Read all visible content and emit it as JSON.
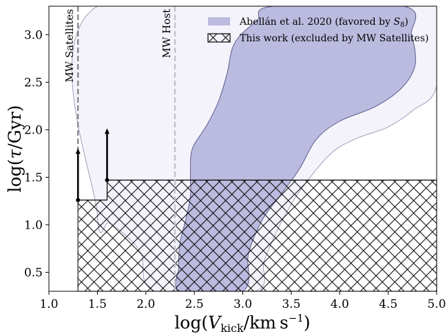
{
  "chart_data": {
    "type": "area",
    "title": "",
    "xlabel": "log(V_kick/km s^-1)",
    "ylabel": "log(τ/Gyr)",
    "xlim": [
      1.0,
      5.0
    ],
    "ylim": [
      0.3,
      3.3
    ],
    "x_ticks": [
      "1.0",
      "1.5",
      "2.0",
      "2.5",
      "3.0",
      "3.5",
      "4.0",
      "4.5",
      "5.0"
    ],
    "y_ticks": [
      "0.5",
      "1.0",
      "1.5",
      "2.0",
      "2.5",
      "3.0"
    ],
    "x_tick_values": [
      1.0,
      1.5,
      2.0,
      2.5,
      3.0,
      3.5,
      4.0,
      4.5,
      5.0
    ],
    "y_tick_values": [
      0.5,
      1.0,
      1.5,
      2.0,
      2.5,
      3.0
    ],
    "grid": false,
    "legend_position": "top-right",
    "colors": {
      "favored_fill": "#bbbbdf",
      "favored_edge": "#5a5a8a",
      "outer_fill": "#f4f3fb",
      "outer_edge": "#9d9dbc",
      "hatch": "#000000",
      "sat_line": "#808080",
      "host_line": "#c0c0c8"
    },
    "vertical_lines": [
      {
        "x": 1.3,
        "label": "MW Satellites"
      },
      {
        "x": 2.3,
        "label": "MW Host"
      }
    ],
    "legend": [
      {
        "label": "Abellán et al. 2020 (favored by S_8)",
        "style": "filled"
      },
      {
        "label": "This work (excluded by MW Satellites)",
        "style": "hatched"
      }
    ],
    "excluded_region": [
      {
        "x": 1.3,
        "y": 0.3
      },
      {
        "x": 1.3,
        "y": 1.26
      },
      {
        "x": 1.6,
        "y": 1.26
      },
      {
        "x": 1.6,
        "y": 1.47
      },
      {
        "x": 5.0,
        "y": 1.47
      },
      {
        "x": 5.0,
        "y": 0.3
      }
    ],
    "lower_limits": [
      {
        "x": 1.3,
        "y_start": 1.26,
        "y_end": 1.79
      },
      {
        "x": 1.6,
        "y_start": 1.47,
        "y_end": 2.0
      }
    ],
    "favored_region": [
      {
        "x": 2.36,
        "y": 0.3
      },
      {
        "x": 2.34,
        "y": 0.55
      },
      {
        "x": 2.35,
        "y": 0.8
      },
      {
        "x": 2.41,
        "y": 1.05
      },
      {
        "x": 2.46,
        "y": 1.3
      },
      {
        "x": 2.46,
        "y": 1.55
      },
      {
        "x": 2.48,
        "y": 1.8
      },
      {
        "x": 2.63,
        "y": 2.05
      },
      {
        "x": 2.75,
        "y": 2.3
      },
      {
        "x": 2.84,
        "y": 2.6
      },
      {
        "x": 2.89,
        "y": 2.85
      },
      {
        "x": 2.98,
        "y": 3.0
      },
      {
        "x": 3.15,
        "y": 3.15
      },
      {
        "x": 3.32,
        "y": 3.3
      },
      {
        "x": 4.66,
        "y": 3.3
      },
      {
        "x": 4.74,
        "y": 3.0
      },
      {
        "x": 4.78,
        "y": 2.8
      },
      {
        "x": 4.76,
        "y": 2.62
      },
      {
        "x": 4.62,
        "y": 2.42
      },
      {
        "x": 4.36,
        "y": 2.24
      },
      {
        "x": 4.0,
        "y": 2.09
      },
      {
        "x": 3.76,
        "y": 1.9
      },
      {
        "x": 3.58,
        "y": 1.58
      },
      {
        "x": 3.38,
        "y": 1.3
      },
      {
        "x": 3.2,
        "y": 1.05
      },
      {
        "x": 3.06,
        "y": 0.7
      },
      {
        "x": 3.0,
        "y": 0.3
      }
    ],
    "outer_region": [
      {
        "x": 1.5,
        "y": 3.3
      },
      {
        "x": 1.5,
        "y": 1.1
      },
      {
        "x": 1.62,
        "y": 1.02
      },
      {
        "x": 1.78,
        "y": 0.9
      },
      {
        "x": 1.95,
        "y": 0.7
      },
      {
        "x": 2.1,
        "y": 0.3
      },
      {
        "x": 3.12,
        "y": 0.3
      },
      {
        "x": 3.22,
        "y": 0.62
      },
      {
        "x": 3.36,
        "y": 0.95
      },
      {
        "x": 3.52,
        "y": 1.25
      },
      {
        "x": 3.68,
        "y": 1.48
      },
      {
        "x": 3.86,
        "y": 1.7
      },
      {
        "x": 4.0,
        "y": 1.82
      },
      {
        "x": 4.2,
        "y": 1.92
      },
      {
        "x": 4.5,
        "y": 2.03
      },
      {
        "x": 4.75,
        "y": 2.2
      },
      {
        "x": 5.0,
        "y": 2.46
      },
      {
        "x": 5.0,
        "y": 3.3
      }
    ]
  }
}
